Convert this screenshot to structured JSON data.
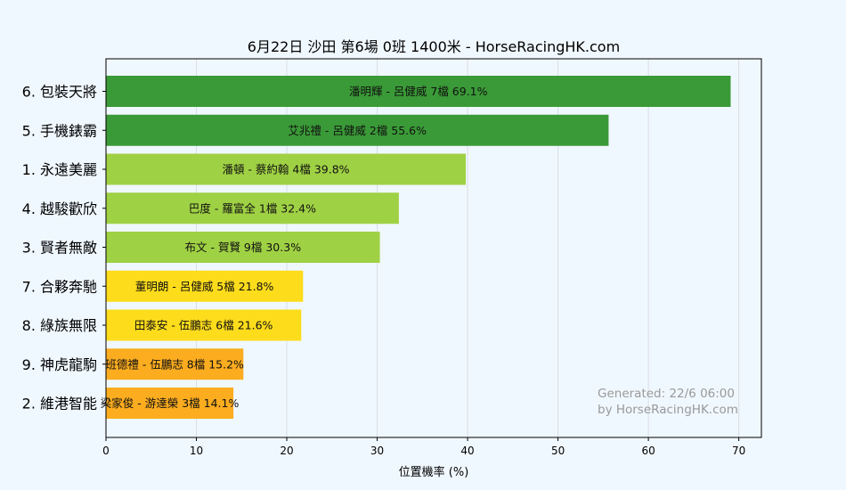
{
  "chart_data": {
    "type": "bar",
    "orientation": "horizontal",
    "title": "6月22日  沙田  第6場  0班  1400米 - HorseRacingHK.com",
    "xlabel": "位置機率 (%)",
    "ylabel": "",
    "xlim": [
      0,
      72.5
    ],
    "xticks": [
      "0",
      "10",
      "20",
      "30",
      "40",
      "50",
      "60",
      "70"
    ],
    "grid": true,
    "categories": [
      "6. 包裝天將",
      "5. 手機錶霸",
      "1. 永遠美麗",
      "4. 越駿歡欣",
      "3. 賢者無敵",
      "7. 合夥奔馳",
      "8. 綠族無限",
      "9. 神虎龍駒",
      "2. 維港智能"
    ],
    "values": [
      69.1,
      55.6,
      39.8,
      32.4,
      30.3,
      21.8,
      21.6,
      15.2,
      14.1
    ],
    "bar_labels": [
      "潘明輝 - 呂健威 7檔  69.1%",
      "艾兆禮 - 呂健威 2檔  55.6%",
      "潘頓 - 蔡約翰 4檔  39.8%",
      "巴度 - 羅富全 1檔  32.4%",
      "布文 - 賀賢 9檔  30.3%",
      "董明朗 - 呂健威 5檔  21.8%",
      "田泰安 - 伍鵬志 6檔  21.6%",
      "班德禮 - 伍鵬志 8檔  15.2%",
      "梁家俊 - 游達榮 3檔  14.1%"
    ],
    "colors": [
      "#3a9a37",
      "#3a9a37",
      "#9fd144",
      "#9fd144",
      "#9fd144",
      "#fddc1b",
      "#fddc1b",
      "#fbac1f",
      "#fbac1f"
    ],
    "watermark": [
      "Generated: 22/6 06:00",
      "by HorseRacingHK.com"
    ]
  },
  "colors": {
    "page_background": "#f0f8ff",
    "plot_background": "#f0f8ff",
    "grid": "#d8dde2",
    "axis": "#000000"
  }
}
